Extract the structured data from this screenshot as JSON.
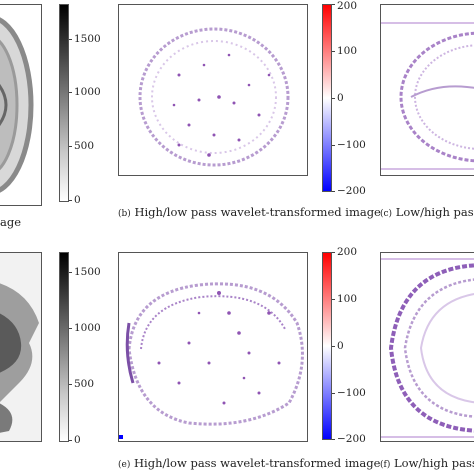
{
  "captions": {
    "a": {
      "label": "",
      "text": "age"
    },
    "b": {
      "label": "(b)",
      "text": "High/low pass wavelet-transformed image"
    },
    "c": {
      "label": "(c)",
      "text": "Low/high pass"
    },
    "d": {
      "label": "",
      "text": ""
    },
    "e": {
      "label": "(e)",
      "text": "High/low pass wavelet-transformed image"
    },
    "f": {
      "label": "(f)",
      "text": "Low/high pass"
    }
  },
  "colorbars": {
    "gray_top": {
      "ticks": [
        "1500",
        "1000",
        "500",
        "0"
      ],
      "range": [
        0,
        1800
      ]
    },
    "div_top": {
      "ticks": [
        "200",
        "100",
        "0",
        "−100",
        "−200"
      ],
      "range": [
        -200,
        200
      ]
    },
    "gray_bottom": {
      "ticks": [
        "1500",
        "1000",
        "500",
        "0"
      ],
      "range": [
        0,
        1700
      ]
    },
    "div_bottom": {
      "ticks": [
        "200",
        "100",
        "0",
        "−100",
        "−200"
      ],
      "range": [
        -200,
        200
      ]
    }
  },
  "colors": {
    "positive": "#ff0000",
    "negative": "#0000ff",
    "wavelet_dot": "#6a1b9a",
    "panel_border": "#555555"
  }
}
